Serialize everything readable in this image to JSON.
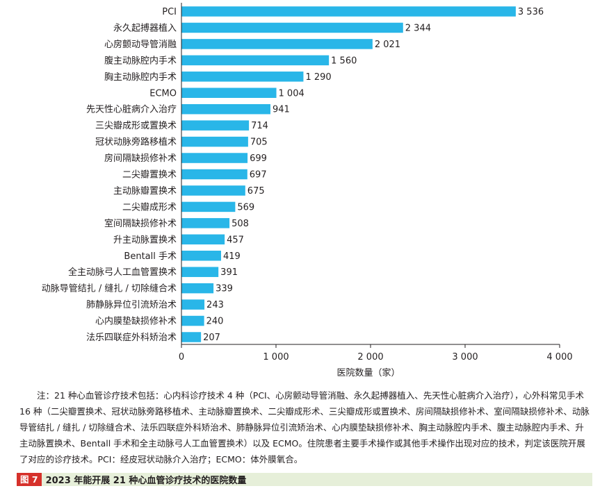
{
  "chart_data": {
    "type": "bar",
    "orientation": "horizontal",
    "categories": [
      "PCI",
      "永久起搏器植入",
      "心房颤动导管消融",
      "腹主动脉腔内手术",
      "胸主动脉腔内手术",
      "ECMO",
      "先天性心脏病介入治疗",
      "三尖瓣成形或置换术",
      "冠状动脉旁路移植术",
      "房间隔缺损修补术",
      "二尖瓣置换术",
      "主动脉瓣置换术",
      "二尖瓣成形术",
      "室间隔缺损修补术",
      "升主动脉置换术",
      "Bentall 手术",
      "全主动脉弓人工血管置换术",
      "动脉导管结扎 / 缝扎 / 切除缝合术",
      "肺静脉异位引流矫治术",
      "心内膜垫缺损修补术",
      "法乐四联症外科矫治术"
    ],
    "values": [
      3536,
      2344,
      2021,
      1560,
      1290,
      1004,
      941,
      714,
      705,
      699,
      697,
      675,
      569,
      508,
      457,
      419,
      391,
      339,
      243,
      240,
      207
    ],
    "value_labels": [
      "3 536",
      "2 344",
      "2 021",
      "1 560",
      "1 290",
      "1 004",
      "941",
      "714",
      "705",
      "699",
      "697",
      "675",
      "569",
      "508",
      "457",
      "419",
      "391",
      "339",
      "243",
      "240",
      "207"
    ],
    "xlim": [
      0,
      4000
    ],
    "xticks": [
      0,
      1000,
      2000,
      3000,
      4000
    ],
    "xtick_labels": [
      "0",
      "1 000",
      "2 000",
      "3 000",
      "4 000"
    ],
    "xlabel": "医院数量（家）",
    "ylabel": "",
    "title": "",
    "grid": false,
    "legend": "none",
    "bar_color": "#29b6e8"
  },
  "note": "注：21 种心血管诊疗技术包括：心内科诊疗技术 4 种（PCI、心房颤动导管消融、永久起搏器植入、先天性心脏病介入治疗），心外科常见手术 16 种（二尖瓣置换术、冠状动脉旁路移植术、主动脉瓣置换术、二尖瓣成形术、三尖瓣成形或置换术、房间隔缺损修补术、室间隔缺损修补术、动脉导管结扎 / 缝扎 / 切除缝合术、法乐四联症外科矫治术、肺静脉异位引流矫治术、心内膜垫缺损修补术、胸主动脉腔内手术、腹主动脉腔内手术、升主动脉置换术、Bentall 手术和全主动脉弓人工血管置换术）以及 ECMO。住院患者主要手术操作或其他手术操作出现对应的技术，判定该医院开展了对应的诊疗技术。PCI：经皮冠状动脉介入治疗；ECMO：体外膜氧合。",
  "caption": {
    "tag": "图 7",
    "title": "2023 年能开展 21 种心血管诊疗技术的医院数量"
  }
}
